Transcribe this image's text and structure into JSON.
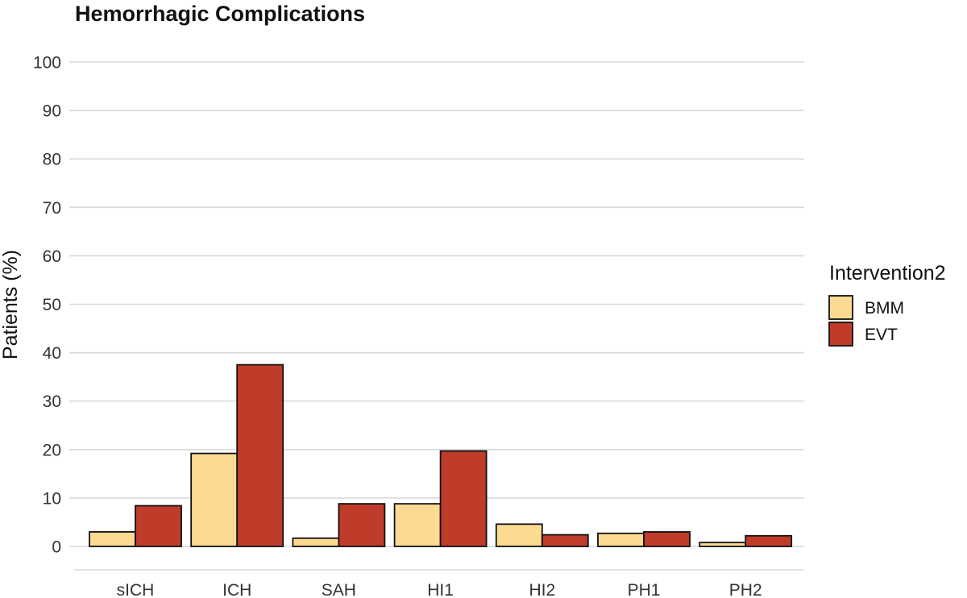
{
  "chart_data": {
    "type": "bar",
    "title": "Hemorrhagic Complications",
    "xlabel": "",
    "ylabel": "Patients (%)",
    "ylim": [
      0,
      100
    ],
    "yticks": [
      0,
      10,
      20,
      30,
      40,
      50,
      60,
      70,
      80,
      90,
      100
    ],
    "grid": true,
    "legend_position": "right",
    "legend_title": "Intervention2",
    "categories": [
      "sICH",
      "ICH",
      "SAH",
      "HI1",
      "HI2",
      "PH1",
      "PH2"
    ],
    "series": [
      {
        "name": "BMM",
        "color": "#FDDA92",
        "values": [
          3.0,
          19.2,
          1.7,
          8.8,
          4.6,
          2.7,
          0.8
        ]
      },
      {
        "name": "EVT",
        "color": "#BF3B2A",
        "values": [
          8.4,
          37.5,
          8.8,
          19.7,
          2.4,
          3.0,
          2.2
        ]
      }
    ]
  }
}
